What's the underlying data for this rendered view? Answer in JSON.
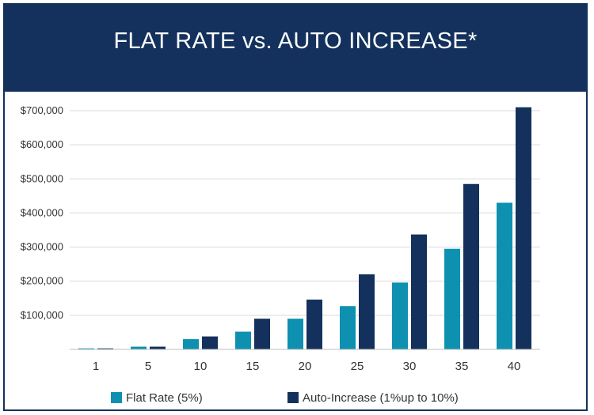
{
  "header": {
    "title": "FLAT RATE vs. AUTO INCREASE*"
  },
  "colors": {
    "flat": "#0e91b0",
    "auto": "#13315c",
    "grid": "#d9d9d9",
    "header_bg": "#13315c"
  },
  "chart_data": {
    "type": "bar",
    "title": "FLAT RATE vs. AUTO INCREASE*",
    "xlabel": "",
    "ylabel": "",
    "categories": [
      "1",
      "5",
      "10",
      "15",
      "20",
      "25",
      "30",
      "35",
      "40"
    ],
    "ylim": [
      0,
      700000
    ],
    "yticks": [
      100000,
      200000,
      300000,
      400000,
      500000,
      600000,
      700000
    ],
    "ytick_labels": [
      "$100,000",
      "$200,000",
      "$300,000",
      "$400,000",
      "$500,000",
      "$600,000",
      "$700,000"
    ],
    "grid": true,
    "legend_position": "bottom",
    "series": [
      {
        "name": "Flat Rate (5%)",
        "color": "#0e91b0",
        "values": [
          3000,
          8000,
          30000,
          52000,
          90000,
          127000,
          196000,
          295000,
          430000
        ]
      },
      {
        "name": "Auto-Increase (1%up to 10%)",
        "color": "#13315c",
        "values": [
          3000,
          8000,
          38000,
          90000,
          146000,
          220000,
          337000,
          485000,
          710000
        ]
      }
    ]
  }
}
